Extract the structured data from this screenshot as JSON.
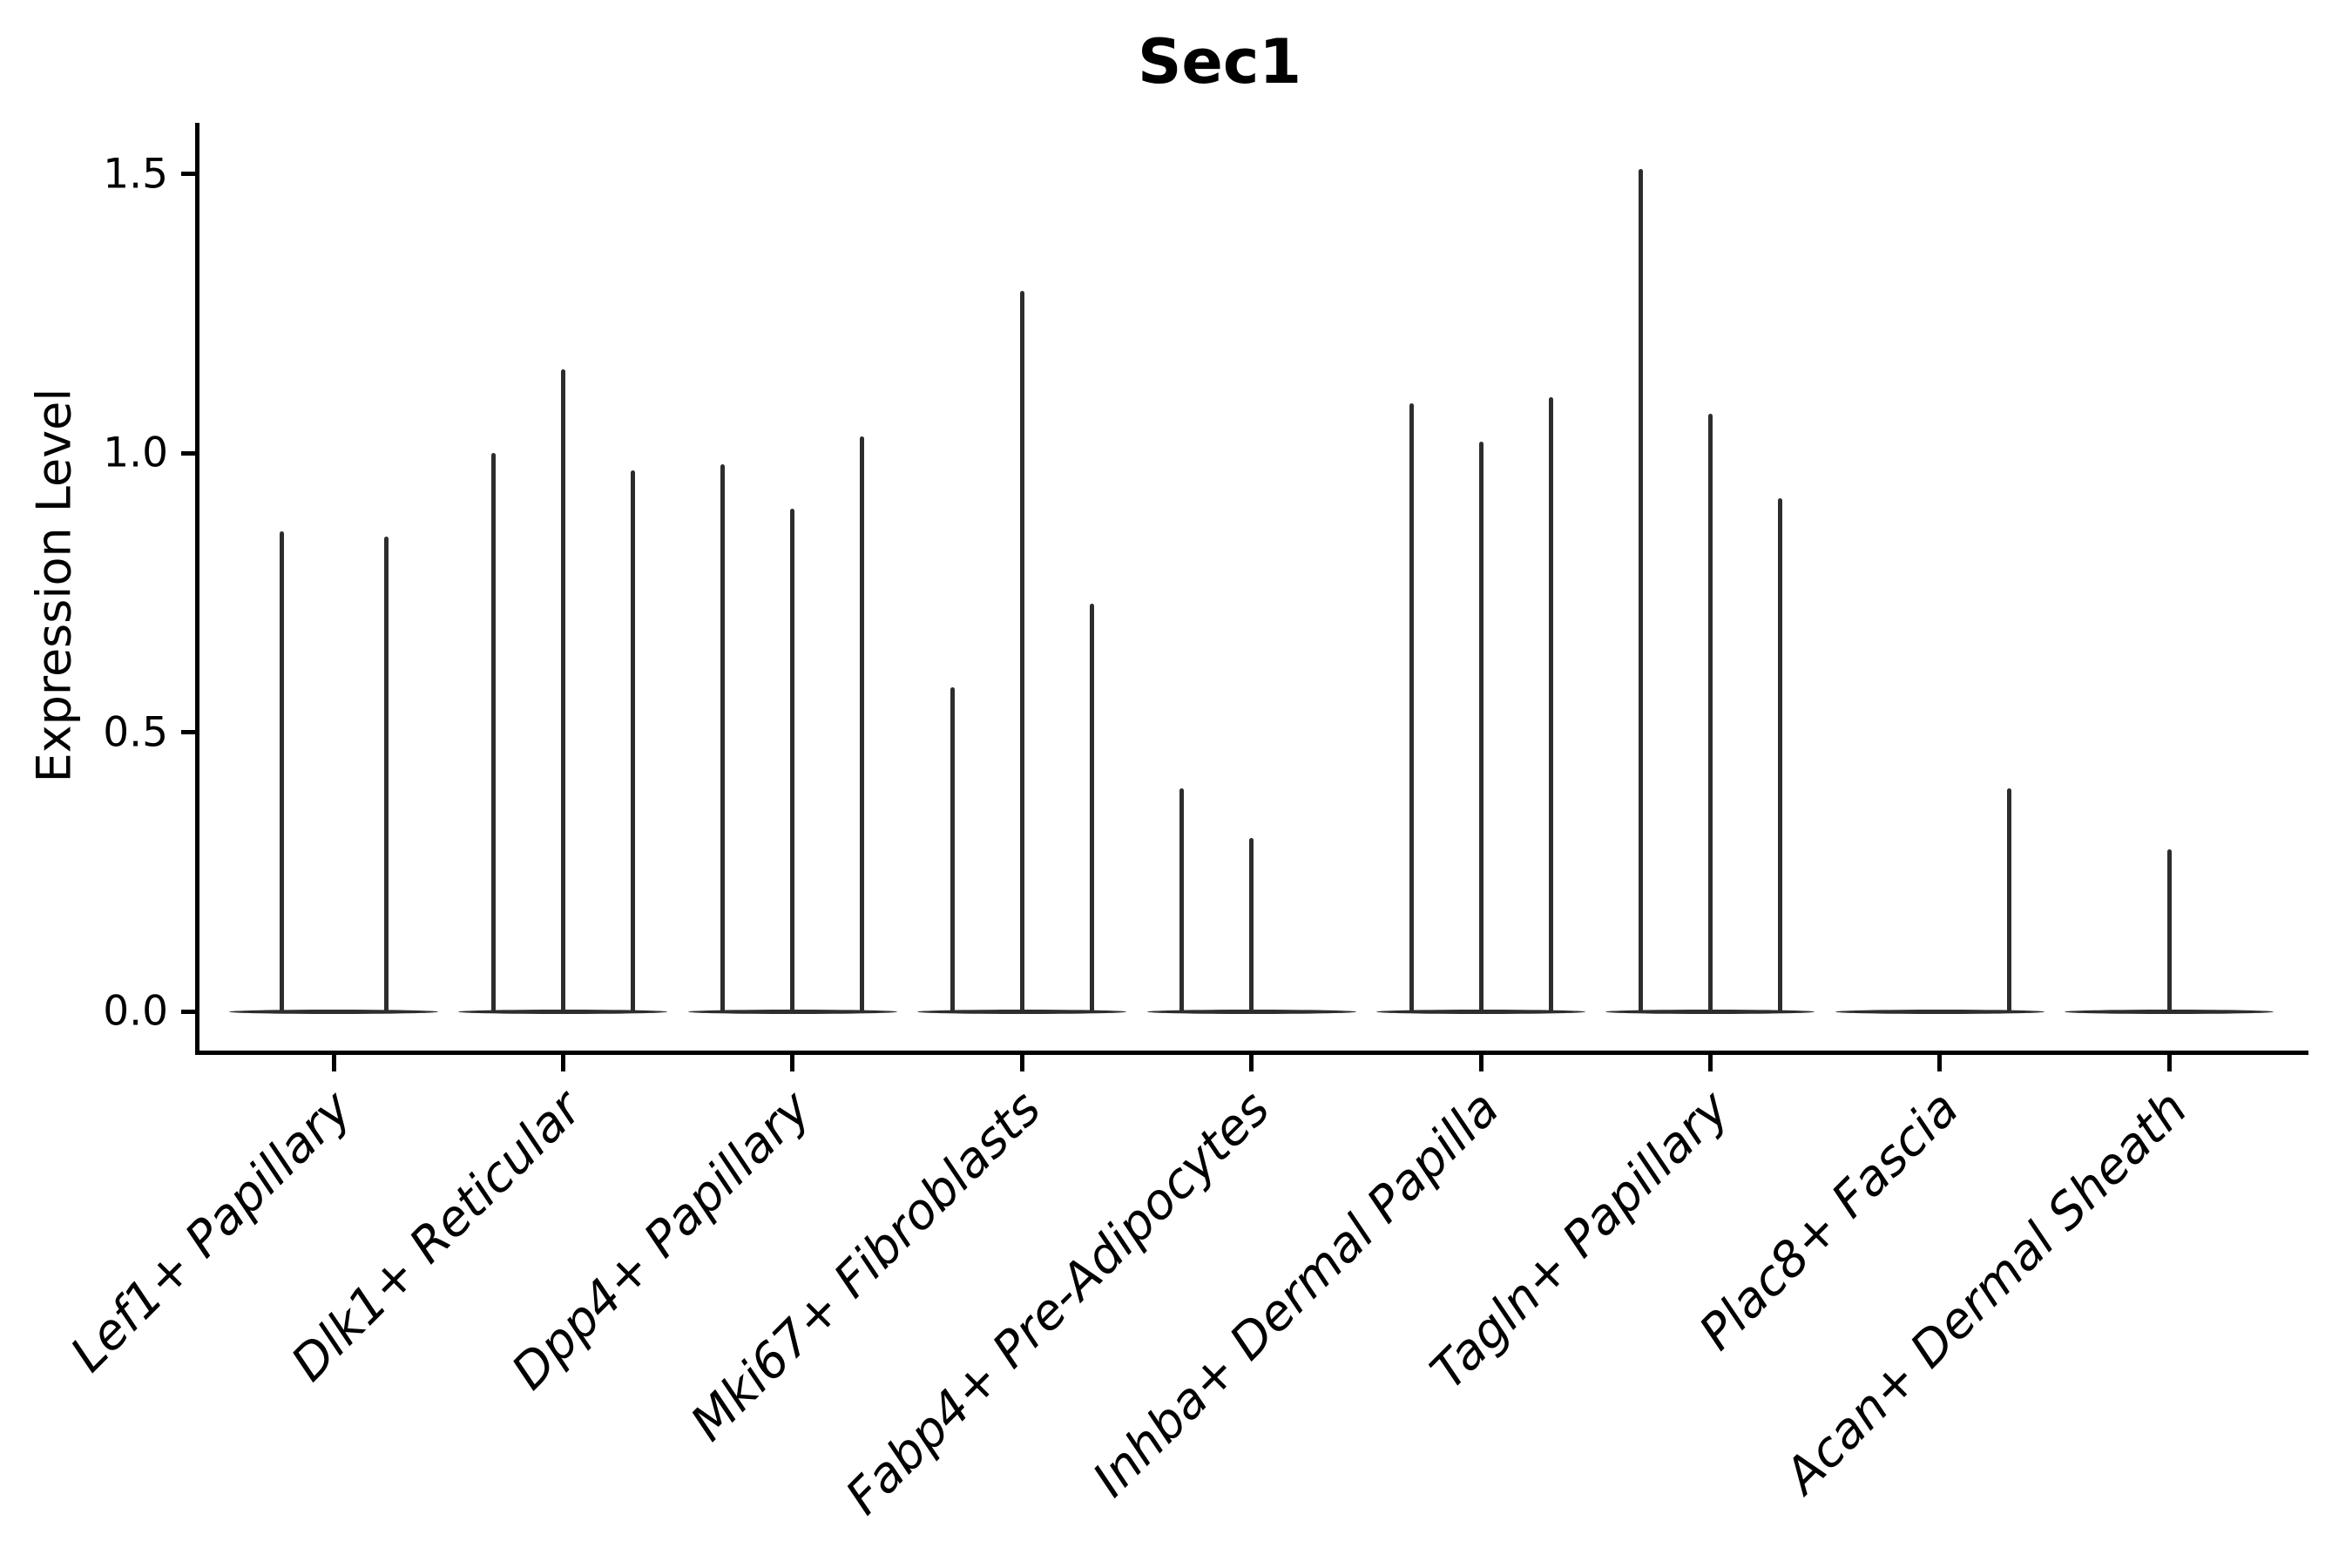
{
  "chart_data": {
    "type": "violin",
    "title": "Sec1",
    "ylabel": "Expression Level",
    "xlabel": "",
    "ytick_labels": [
      "0.0",
      "0.5",
      "1.0",
      "1.5"
    ],
    "ytick_values": [
      0.0,
      0.5,
      1.0,
      1.5
    ],
    "ylim": [
      -0.075,
      1.59
    ],
    "grid": false,
    "legend": null,
    "description": "Spike-shaped violins per cell-type; each category contains 2-3 thin violins whose flat base sits at expression 0 and whose peak reaches the listed maximum expression value. Zero entries are flat violins with no visible spike.",
    "categories": [
      {
        "label": "Lef1+ Papillary",
        "violin_peaks": [
          0.86,
          0.85
        ]
      },
      {
        "label": "Dlk1+ Reticular",
        "violin_peaks": [
          1.0,
          1.15,
          0.97
        ]
      },
      {
        "label": "Dpp4+ Papillary",
        "violin_peaks": [
          0.98,
          0.9,
          1.03
        ]
      },
      {
        "label": "Mki67+ Fibroblasts",
        "violin_peaks": [
          0.58,
          1.29,
          0.73
        ]
      },
      {
        "label": "Fabp4+ Pre-Adipocytes",
        "violin_peaks": [
          0.4,
          0.31,
          0
        ]
      },
      {
        "label": "Inhba+ Dermal Papilla",
        "violin_peaks": [
          1.09,
          1.02,
          1.1
        ]
      },
      {
        "label": "Tagln+ Papillary",
        "violin_peaks": [
          1.51,
          1.07,
          0.92
        ]
      },
      {
        "label": "Plac8+ Fascia",
        "violin_peaks": [
          0,
          0,
          0.4
        ]
      },
      {
        "label": "Acan+ Dermal Sheath",
        "violin_peaks": [
          0,
          0.29,
          0
        ]
      }
    ],
    "colors": {
      "violin": "#2d2d2d",
      "axis": "#000000",
      "text": "#000000",
      "background": "#ffffff"
    }
  }
}
